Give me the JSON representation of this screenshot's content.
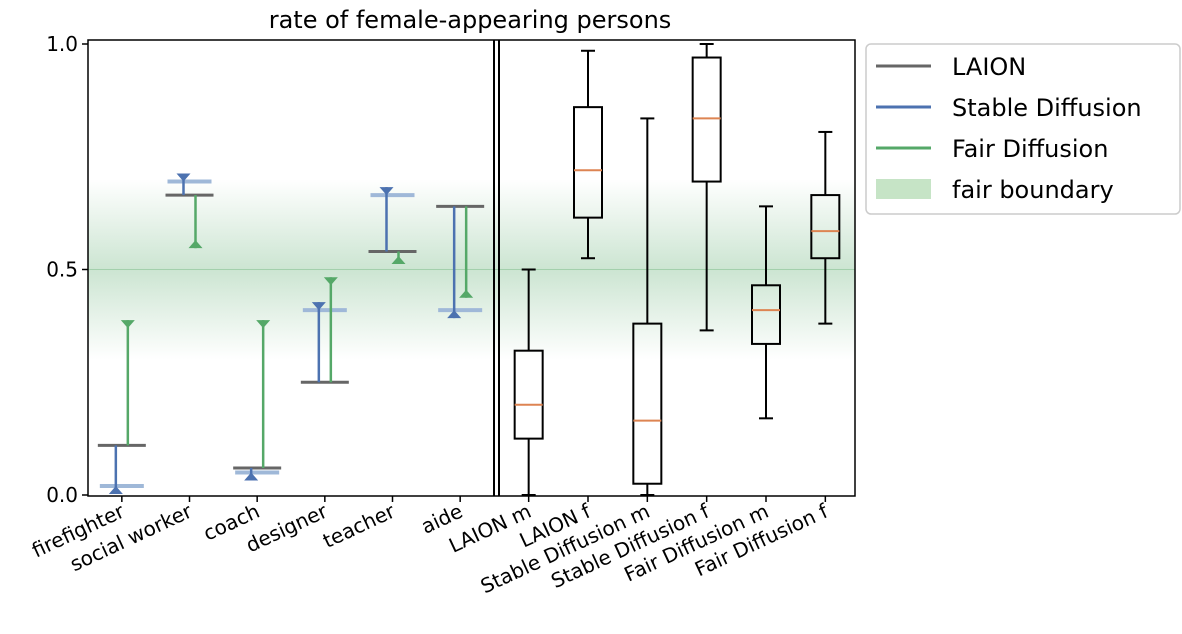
{
  "chart_data": {
    "type": "box",
    "title": "rate of female-appearing persons",
    "ylim": [
      0,
      1
    ],
    "yticks": [
      "0.0",
      "0.5",
      "1.0"
    ],
    "fair_boundary": {
      "center": 0.5,
      "extent": 0.2
    },
    "legend": {
      "placement": "right",
      "entries": [
        {
          "label": "LAION",
          "color": "#666666",
          "kind": "line"
        },
        {
          "label": "Stable Diffusion",
          "color": "#4c72b0",
          "kind": "line"
        },
        {
          "label": "Fair Diffusion",
          "color": "#55a868",
          "kind": "line"
        },
        {
          "label": "fair boundary",
          "color": "#c6e4c6",
          "kind": "patch"
        }
      ]
    },
    "occupations": {
      "categories": [
        "firefighter",
        "social worker",
        "coach",
        "designer",
        "teacher",
        "aide"
      ],
      "laion": [
        0.11,
        0.665,
        0.06,
        0.25,
        0.54,
        0.64
      ],
      "stable_diffusion": [
        0.02,
        0.695,
        0.05,
        0.41,
        0.665,
        0.41
      ],
      "fair_diffusion": [
        0.37,
        0.565,
        0.37,
        0.465,
        0.53,
        0.455
      ]
    },
    "boxplots": {
      "categories": [
        "LAION m",
        "LAION f",
        "Stable Diffusion m",
        "Stable Diffusion f",
        "Fair Diffusion m",
        "Fair Diffusion f"
      ],
      "stats": [
        {
          "whislo": 0.0,
          "q1": 0.125,
          "med": 0.2,
          "q3": 0.32,
          "whishi": 0.5
        },
        {
          "whislo": 0.525,
          "q1": 0.615,
          "med": 0.72,
          "q3": 0.86,
          "whishi": 0.985
        },
        {
          "whislo": 0.0,
          "q1": 0.025,
          "med": 0.165,
          "q3": 0.38,
          "whishi": 0.835
        },
        {
          "whislo": 0.365,
          "q1": 0.695,
          "med": 0.835,
          "q3": 0.97,
          "whishi": 1.0
        },
        {
          "whislo": 0.17,
          "q1": 0.335,
          "med": 0.41,
          "q3": 0.465,
          "whishi": 0.64
        },
        {
          "whislo": 0.38,
          "q1": 0.525,
          "med": 0.585,
          "q3": 0.665,
          "whishi": 0.805
        }
      ],
      "median_color": "#dd8452"
    }
  }
}
